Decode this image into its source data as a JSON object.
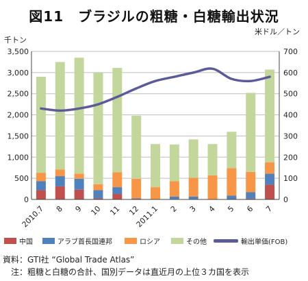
{
  "title": "図11　ブラジルの粗糖・白糖輸出状況",
  "legend": {
    "china": "中国",
    "uae": "アラブ首長国連邦",
    "russia": "ロシア",
    "other": "その他",
    "price": "輸出単価(FOB)"
  },
  "colors": {
    "china": "#c0504d",
    "uae": "#4f81bd",
    "russia": "#f79646",
    "other": "#c3d69b",
    "price": "#5b5b9a"
  },
  "notes": {
    "source": "資料：GTI社 “Global Trade Atlas”",
    "note": "注：粗糖と白糖の合計、国別データは直近月の上位３カ国を表示"
  },
  "chart_data": {
    "type": "bar",
    "stacked": true,
    "categories": [
      "2010.7",
      "8",
      "9",
      "10",
      "11",
      "12",
      "2011.1",
      "2",
      "3",
      "4",
      "5",
      "6",
      "7"
    ],
    "series": [
      {
        "name": "中国",
        "values": [
          220,
          310,
          230,
          30,
          130,
          20,
          0,
          10,
          10,
          0,
          0,
          20,
          350
        ]
      },
      {
        "name": "アラブ首長国連邦",
        "values": [
          210,
          240,
          260,
          190,
          160,
          10,
          0,
          60,
          60,
          0,
          90,
          150,
          260
        ]
      },
      {
        "name": "ロシア",
        "values": [
          200,
          160,
          120,
          140,
          350,
          460,
          290,
          360,
          440,
          570,
          650,
          480,
          270
        ]
      },
      {
        "name": "その他",
        "values": [
          2270,
          2540,
          2740,
          2640,
          2470,
          1490,
          1020,
          870,
          910,
          740,
          860,
          1870,
          2190
        ]
      }
    ],
    "line_series": {
      "name": "輸出単価(FOB)",
      "axis": "right",
      "values": [
        430,
        420,
        430,
        450,
        485,
        525,
        560,
        580,
        600,
        618,
        570,
        560,
        580
      ]
    },
    "ylabel_left": "千トン",
    "ylabel_right": "米ドル／トン",
    "ylim_left": [
      0,
      3500
    ],
    "ylim_right": [
      0,
      700
    ],
    "yticks_left": [
      "0",
      "500",
      "1,000",
      "1,500",
      "2,000",
      "2,500",
      "3,000",
      "3,500"
    ],
    "yticks_right": [
      "0",
      "100",
      "200",
      "300",
      "400",
      "500",
      "600",
      "700"
    ],
    "grid": true,
    "legend_position": "bottom"
  }
}
